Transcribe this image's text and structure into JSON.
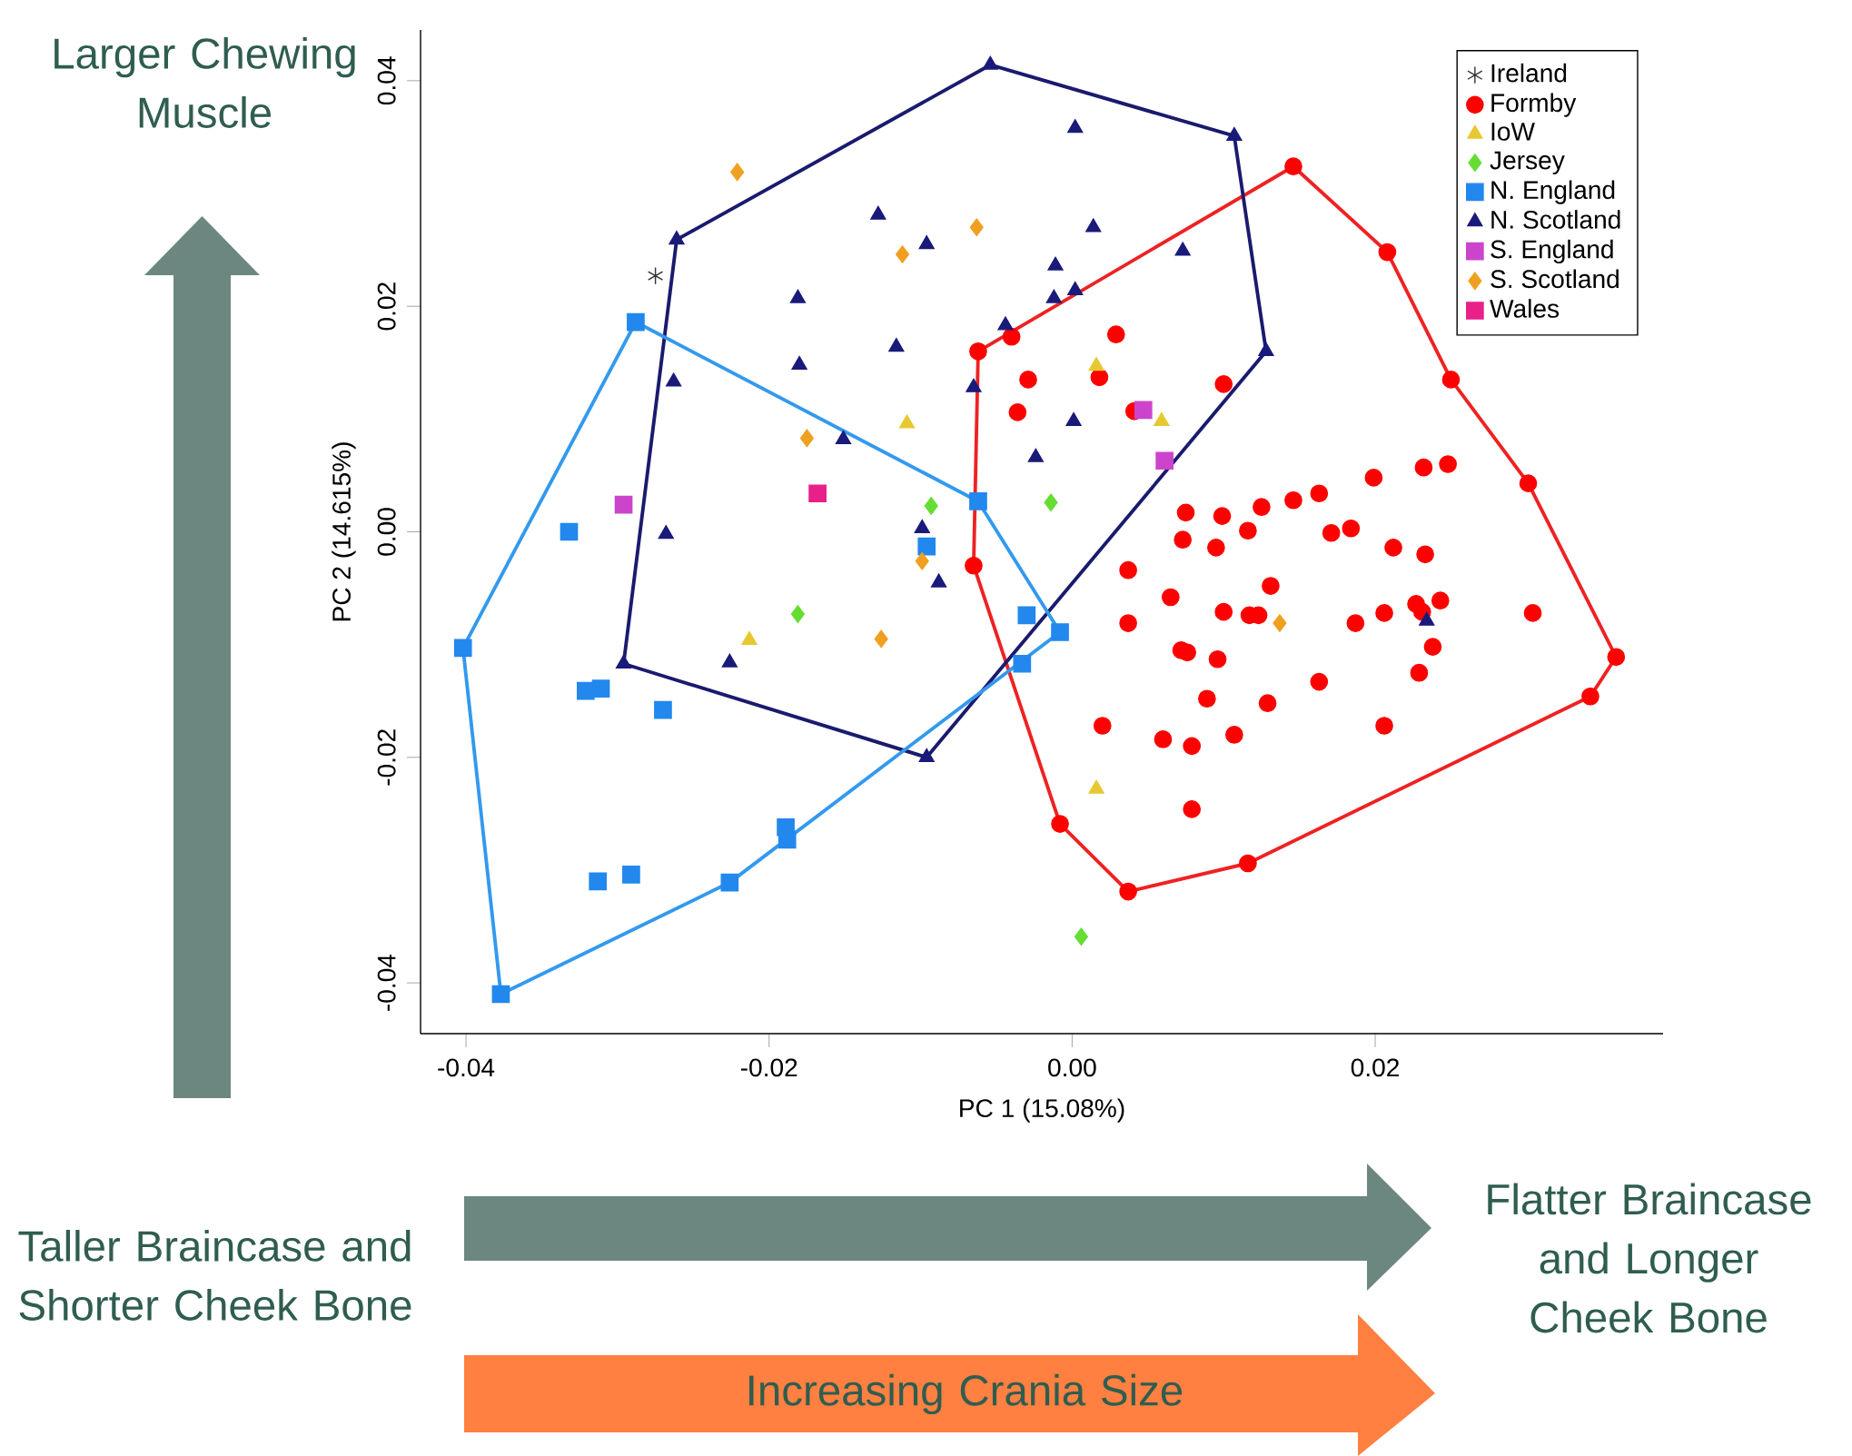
{
  "chart_data": {
    "type": "scatter",
    "xlabel": "PC 1 (15.08%)",
    "ylabel": "PC 2 (14.615%)",
    "xlim": [
      -0.043,
      0.039
    ],
    "ylim": [
      -0.0445,
      0.0445
    ],
    "xticks": [
      {
        "value": -0.04,
        "label": "-0.04"
      },
      {
        "value": -0.02,
        "label": "-0.02"
      },
      {
        "value": 0,
        "label": "0.00"
      },
      {
        "value": 0.02,
        "label": "0.02"
      }
    ],
    "yticks": [
      {
        "value": -0.04,
        "label": "-0.04"
      },
      {
        "value": -0.02,
        "label": "-0.02"
      },
      {
        "value": 0,
        "label": "0.00"
      },
      {
        "value": 0.02,
        "label": "0.02"
      },
      {
        "value": 0.04,
        "label": "0.04"
      }
    ],
    "legend": "top right",
    "annotations": [
      "Larger Chewing Muscle",
      "Taller Braincase and Shorter Cheek Bone",
      "Flatter Braincase and Longer Cheek Bone",
      "Increasing Crania Size"
    ],
    "series": [
      {
        "type": "line",
        "marker": "none",
        "color": "#ee2222",
        "x": [
          -0.0065,
          -0.0062,
          0.0146,
          0.0208,
          0.025,
          0.0301,
          0.0359
        ],
        "values": [
          -0.003,
          0.016,
          0.0324,
          0.0248,
          0.0135,
          0.0043,
          -0.0111
        ]
      },
      {
        "type": "line",
        "marker": "none",
        "color": "#ee2222",
        "x": [
          -0.0065,
          -0.0008,
          0.0037,
          0.0116,
          0.0342,
          0.0359
        ],
        "values": [
          -0.003,
          -0.0259,
          -0.0319,
          -0.0294,
          -0.0146,
          -0.0111
        ]
      },
      {
        "type": "line",
        "marker": "none",
        "color": "#1a1a6e",
        "x": [
          -0.0296,
          -0.0261,
          -0.0054,
          0.0107,
          0.0128
        ],
        "values": [
          -0.0117,
          0.0259,
          0.0414,
          0.0351,
          0.016
        ]
      },
      {
        "type": "line",
        "marker": "none",
        "color": "#1a1a6e",
        "x": [
          -0.0296,
          -0.0096,
          0.0128
        ],
        "values": [
          -0.0117,
          -0.02,
          0.016
        ]
      },
      {
        "type": "line",
        "marker": "none",
        "color": "#3399ee",
        "x": [
          -0.0402,
          -0.0288,
          -0.0062,
          -0.0008
        ],
        "values": [
          -0.0103,
          0.0186,
          0.0027,
          -0.0089
        ]
      },
      {
        "type": "line",
        "marker": "none",
        "color": "#3399ee",
        "x": [
          -0.0402,
          -0.0377,
          -0.0226,
          -0.0008
        ],
        "values": [
          -0.0103,
          -0.041,
          -0.0311,
          -0.0089
        ]
      },
      {
        "name": "Ireland",
        "marker": "cross",
        "color": "#333333",
        "x": [
          -0.0275
        ],
        "values": [
          0.0227
        ]
      },
      {
        "name": "Formby",
        "marker": "circle",
        "color": "#ff0000",
        "x": [
          0.0146,
          0.0208,
          0.025,
          0.0301,
          0.0359,
          0.0342,
          0.0304,
          0.0116,
          0.0037,
          -0.0008,
          -0.0065,
          -0.0062,
          -0.004,
          -0.0029,
          -0.0036,
          0.0029,
          0.0018,
          0.0041,
          0.01,
          0.0075,
          0.0099,
          0.0125,
          0.0146,
          0.0163,
          0.0184,
          0.0171,
          0.0199,
          0.0232,
          0.0248,
          0.0116,
          0.0073,
          0.0095,
          0.0037,
          0.0131,
          0.0212,
          0.0233,
          0.0065,
          0.0037,
          0.01,
          0.0117,
          0.0123,
          0.0187,
          0.0206,
          0.0227,
          0.0243,
          0.0231,
          0.0238,
          0.0229,
          0.0072,
          0.0076,
          0.0096,
          0.0163,
          0.0129,
          0.0089,
          0.002,
          0.006,
          0.0079,
          0.0107,
          0.0206,
          0.0079
        ],
        "values": [
          0.0324,
          0.0248,
          0.0135,
          0.0043,
          -0.0111,
          -0.0146,
          -0.0072,
          -0.0294,
          -0.0319,
          -0.0259,
          -0.003,
          0.016,
          0.0173,
          0.0135,
          0.0106,
          0.0175,
          0.0137,
          0.0107,
          0.0131,
          0.0017,
          0.0014,
          0.0022,
          0.0028,
          0.0034,
          0.0003,
          -0.0001,
          0.0048,
          0.0057,
          0.006,
          0.0001,
          -0.0007,
          -0.0014,
          -0.0034,
          -0.0048,
          -0.0014,
          -0.002,
          -0.0058,
          -0.0081,
          -0.0071,
          -0.0074,
          -0.0074,
          -0.0081,
          -0.0072,
          -0.0064,
          -0.0061,
          -0.0071,
          -0.0102,
          -0.0125,
          -0.0105,
          -0.0107,
          -0.0113,
          -0.0133,
          -0.0152,
          -0.0148,
          -0.0172,
          -0.0184,
          -0.019,
          -0.018,
          -0.0172,
          -0.0246
        ]
      },
      {
        "name": "IoW",
        "marker": "triangle",
        "color": "#e8c830",
        "x": [
          0.0016,
          -0.0109,
          0.0059,
          -0.0213,
          0.0016
        ],
        "values": [
          0.0147,
          0.0096,
          0.0098,
          -0.0096,
          -0.0228
        ]
      },
      {
        "name": "Jersey",
        "marker": "diamond",
        "color": "#66dd33",
        "x": [
          -0.0093,
          -0.0014,
          -0.0181,
          0.0006
        ],
        "values": [
          0.0023,
          0.0026,
          -0.0073,
          -0.0359
        ]
      },
      {
        "name": "N. England",
        "marker": "square",
        "color": "#2288ee",
        "x": [
          -0.0288,
          -0.0332,
          -0.0402,
          -0.0321,
          -0.0311,
          -0.027,
          -0.0377,
          -0.0313,
          -0.0291,
          -0.0226,
          -0.0189,
          -0.0188,
          -0.0033,
          -0.0008,
          -0.003,
          -0.0062,
          -0.0096
        ],
        "values": [
          0.0186,
          0.0,
          -0.0103,
          -0.0141,
          -0.0139,
          -0.0158,
          -0.041,
          -0.031,
          -0.0304,
          -0.0311,
          -0.0262,
          -0.0273,
          -0.0117,
          -0.0089,
          -0.0074,
          0.0027,
          -0.0013
        ]
      },
      {
        "name": "N. Scotland",
        "marker": "triangle",
        "color": "#1a1a7a",
        "x": [
          -0.0054,
          0.0002,
          0.0107,
          0.0128,
          0.0014,
          0.0073,
          -0.0011,
          0.0002,
          -0.0012,
          -0.0044,
          -0.0065,
          0.0001,
          -0.0024,
          -0.0128,
          -0.0096,
          -0.0181,
          -0.018,
          -0.0116,
          -0.0151,
          -0.0261,
          -0.0263,
          -0.0268,
          -0.0296,
          -0.0226,
          -0.0099,
          -0.0088,
          -0.0096,
          0.0234
        ],
        "values": [
          0.0414,
          0.0358,
          0.0351,
          0.016,
          0.027,
          0.0249,
          0.0236,
          0.0214,
          0.0207,
          0.0183,
          0.0128,
          0.0098,
          0.0066,
          0.0281,
          0.0255,
          0.0207,
          0.0148,
          0.0164,
          0.0082,
          0.0259,
          0.0133,
          -0.0002,
          -0.0117,
          -0.0116,
          0.0003,
          -0.0045,
          -0.02,
          -0.0079
        ]
      },
      {
        "name": "S. England",
        "marker": "square",
        "color": "#cc44cc",
        "x": [
          -0.0296,
          0.0047,
          0.0061
        ],
        "values": [
          0.0024,
          0.0108,
          0.0063
        ]
      },
      {
        "name": "S. Scotland",
        "marker": "diamond",
        "color": "#f0a020",
        "x": [
          -0.0221,
          -0.0063,
          -0.0112,
          -0.0175,
          -0.0099,
          -0.0126,
          0.0137
        ],
        "values": [
          0.0319,
          0.027,
          0.0246,
          0.0083,
          -0.0026,
          -0.0095,
          -0.0081
        ]
      },
      {
        "name": "Wales",
        "marker": "square",
        "color": "#e8208a",
        "x": [
          -0.0168
        ],
        "values": [
          0.0034
        ]
      }
    ]
  }
}
